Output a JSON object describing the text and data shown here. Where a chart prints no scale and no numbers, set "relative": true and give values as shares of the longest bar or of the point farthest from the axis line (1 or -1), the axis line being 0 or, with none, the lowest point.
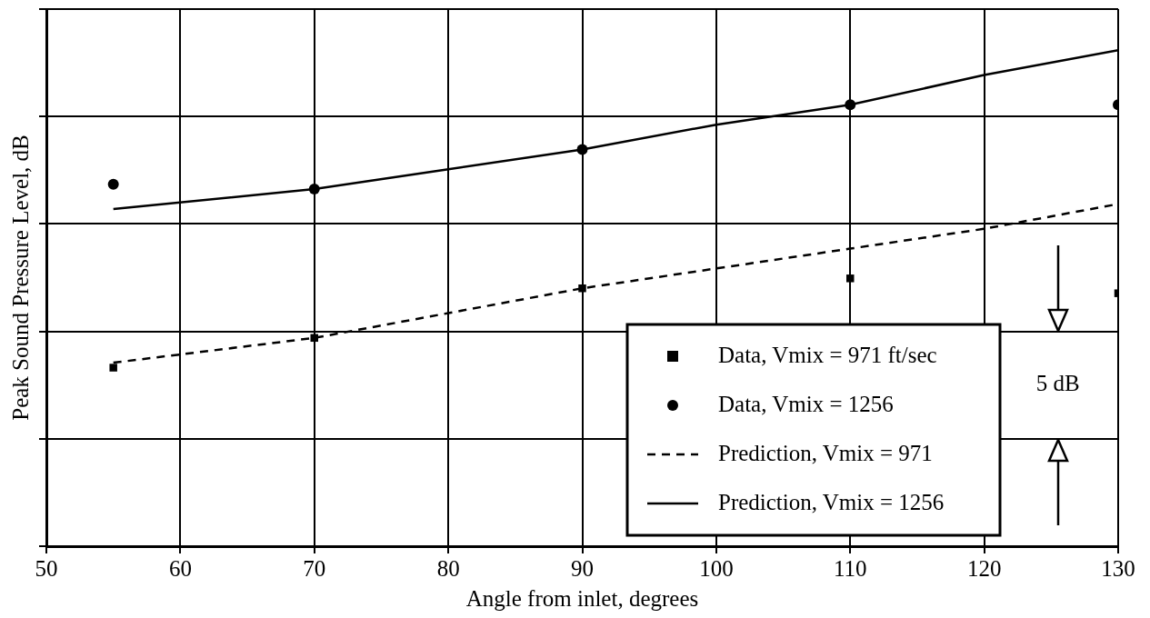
{
  "chart_data": {
    "type": "scatter",
    "xlabel": "Angle from inlet, degrees",
    "ylabel": "Peak Sound Pressure Level, dB",
    "relative": true,
    "xlim": [
      50,
      130
    ],
    "xticks": [
      50,
      60,
      70,
      80,
      90,
      100,
      110,
      120,
      130
    ],
    "grid": true,
    "legend": "bottom right",
    "annotations": [
      "5 dB"
    ],
    "series": [
      {
        "name": "Data, Vmix = 971 ft/sec",
        "marker": "square",
        "color": "#000000",
        "x": [
          55,
          70,
          90,
          110,
          130
        ],
        "values": [
          0.36,
          0.42,
          0.52,
          0.54,
          0.51
        ]
      },
      {
        "name": "Data, Vmix = 1256",
        "marker": "circle",
        "color": "#000000",
        "x": [
          55,
          70,
          90,
          110,
          130
        ],
        "values": [
          0.73,
          0.72,
          0.8,
          0.89,
          0.89
        ]
      },
      {
        "name": "Prediction, Vmix = 971",
        "type": "line",
        "marker": "none",
        "line_style": "dashed",
        "color": "#000000",
        "x": [
          55,
          70,
          80,
          90,
          100,
          110,
          120,
          130
        ],
        "values": [
          0.37,
          0.42,
          0.47,
          0.52,
          0.56,
          0.6,
          0.64,
          0.69
        ]
      },
      {
        "name": "Prediction, Vmix = 1256",
        "type": "line",
        "marker": "none",
        "line_style": "solid",
        "color": "#000000",
        "x": [
          55,
          70,
          80,
          90,
          100,
          110,
          120,
          130
        ],
        "values": [
          0.68,
          0.72,
          0.76,
          0.8,
          0.85,
          0.89,
          0.95,
          1
        ]
      }
    ]
  }
}
